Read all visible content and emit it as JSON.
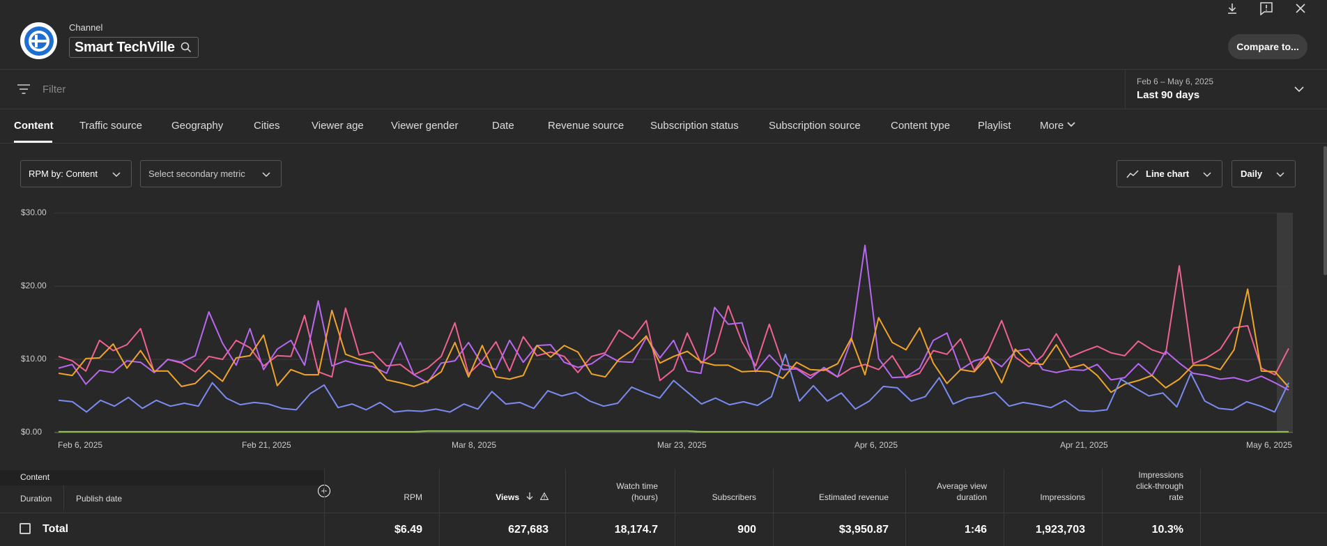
{
  "header": {
    "channel_label": "Channel",
    "channel_name": "Smart TechVille",
    "compare_label": "Compare to..."
  },
  "filter": {
    "placeholder": "Filter"
  },
  "date": {
    "range": "Feb 6 – May 6, 2025",
    "preset": "Last 90 days"
  },
  "tabs": [
    {
      "label": "Content",
      "active": true
    },
    {
      "label": "Traffic source"
    },
    {
      "label": "Geography"
    },
    {
      "label": "Cities"
    },
    {
      "label": "Viewer age"
    },
    {
      "label": "Viewer gender"
    },
    {
      "label": "Date"
    },
    {
      "label": "Revenue source"
    },
    {
      "label": "Subscription status"
    },
    {
      "label": "Subscription source"
    },
    {
      "label": "Content type"
    },
    {
      "label": "Playlist"
    },
    {
      "label": "More"
    }
  ],
  "controls": {
    "primary_metric": "RPM by: Content",
    "secondary_metric": "Select secondary metric",
    "chart_type": "Line chart",
    "granularity": "Daily"
  },
  "chart_data": {
    "type": "line",
    "y_ticks": [
      "$30.00",
      "$20.00",
      "$10.00",
      "$0.00"
    ],
    "ylim": [
      0,
      30
    ],
    "x_ticks": [
      "Feb 6, 2025",
      "Feb 21, 2025",
      "Mar 8, 2025",
      "Mar 23, 2025",
      "Apr 6, 2025",
      "Apr 21, 2025",
      "May 6, 2025"
    ],
    "xlim": [
      "2025-02-06",
      "2025-05-06"
    ],
    "grid": true,
    "series": [
      {
        "color": "#f06292",
        "values": [
          10.4,
          9.8,
          8.4,
          12.6,
          11.2,
          12,
          14.2,
          8.2,
          10,
          9.5,
          8.3,
          10.4,
          10,
          12.6,
          11.6,
          9.1,
          10.5,
          10.4,
          16,
          8.3,
          7.6,
          17,
          10.6,
          11,
          9.1,
          9.3,
          7.9,
          8.8,
          10.4,
          15,
          8,
          9.8,
          12.4,
          8.4,
          13.1,
          10.5,
          11,
          10.4,
          8.2,
          10.4,
          10.9,
          14,
          12.8,
          15.3,
          7.1,
          8.6,
          13.6,
          9.5,
          10.9,
          17.3,
          12.4,
          9.1,
          14.8,
          9.3,
          8.8,
          7.8,
          8.7,
          7.6,
          8.8,
          9.3,
          8.6,
          10.5,
          7.5,
          8.1,
          11.2,
          10.7,
          12.8,
          8.5,
          11.1,
          15.3,
          10.3,
          9,
          10.5,
          13.5,
          10.3,
          11.1,
          11.8,
          10.9,
          10.5,
          12.5,
          11.3,
          10.7,
          22.8,
          9.4,
          10.2,
          11.4,
          14.3,
          14.6,
          8.8,
          7.9,
          11.5
        ]
      },
      {
        "color": "#b868f2",
        "values": [
          8.8,
          9.3,
          6.6,
          8.5,
          8.2,
          9.8,
          9.6,
          8.2,
          10,
          9.6,
          10.5,
          16.5,
          12.2,
          9.2,
          14.2,
          8.6,
          11.4,
          12.6,
          9.2,
          18,
          9.1,
          9.8,
          9.3,
          9,
          8.1,
          12.3,
          7.9,
          6.8,
          9.5,
          9.8,
          12.3,
          9.3,
          8.6,
          12.6,
          9.6,
          11.9,
          12,
          9.6,
          8.9,
          9.4,
          10.7,
          9.7,
          9.6,
          13,
          10.2,
          12.6,
          8.4,
          8.1,
          17.1,
          14.8,
          15,
          8.3,
          10.6,
          8.6,
          8.7,
          7.4,
          8.9,
          7.6,
          12.6,
          25.6,
          10.1,
          7.5,
          7.6,
          8.8,
          12.6,
          13.6,
          8.6,
          9.8,
          10.3,
          9,
          11.1,
          11.4,
          8.6,
          8.2,
          8.6,
          8.5,
          9.3,
          7.2,
          7.5,
          9.4,
          7.8,
          11.1,
          9.5,
          8.1,
          7.8,
          7.3,
          7.5,
          7,
          7.7,
          6.8,
          5.8
        ]
      },
      {
        "color": "#f0a52a",
        "values": [
          8.1,
          7.8,
          10.1,
          10.2,
          12.1,
          8.8,
          11.2,
          8.4,
          8.4,
          6.3,
          6.7,
          8.5,
          7,
          10.2,
          10.5,
          13.3,
          6.4,
          8.6,
          7.9,
          7.9,
          16.7,
          10.7,
          10,
          9.5,
          7.2,
          6.8,
          6.3,
          7,
          8.3,
          12.3,
          7.6,
          11.9,
          7.6,
          7.3,
          7.8,
          11.9,
          10.3,
          11.9,
          11,
          8,
          7.6,
          10,
          11.3,
          13.2,
          9.5,
          10.4,
          11.1,
          9.7,
          9.2,
          9.2,
          8.3,
          8.4,
          8.3,
          7.4,
          9.6,
          8.6,
          8.5,
          9.4,
          12.9,
          7.9,
          15.7,
          12.3,
          11.3,
          14.3,
          9.5,
          6.7,
          8.6,
          8.3,
          10.4,
          6.8,
          11.4,
          9.5,
          9.3,
          12,
          8.8,
          9.3,
          7.8,
          5.5,
          6.6,
          7.1,
          7.8,
          6.1,
          7.3,
          9.2,
          9.2,
          8.6,
          11.3,
          19.6,
          8.4,
          8.3,
          6.2
        ]
      },
      {
        "color": "#7b8cf0",
        "values": [
          4.4,
          4.2,
          2.8,
          4.4,
          3.6,
          4.8,
          3.3,
          4.4,
          3.6,
          4,
          3.6,
          6.8,
          4.7,
          3.8,
          4.1,
          3.9,
          3.3,
          3.1,
          5.3,
          6.5,
          3.4,
          3.9,
          3.1,
          4.1,
          2.8,
          3,
          2.9,
          3.2,
          2.8,
          3.9,
          3.2,
          5.6,
          3.9,
          4.1,
          3.3,
          5.7,
          5,
          5.5,
          4.3,
          3.6,
          4,
          6.2,
          5.4,
          4.7,
          7.1,
          5.5,
          3.9,
          4.7,
          3.8,
          4.2,
          3.7,
          4.9,
          10.7,
          4.3,
          6.4,
          4.3,
          5.4,
          3.2,
          4.3,
          6.3,
          6.1,
          4.3,
          4.9,
          7.5,
          3.9,
          4.7,
          5,
          5.5,
          3.6,
          4.1,
          3.8,
          3.4,
          4.4,
          3,
          2.9,
          3.1,
          7.3,
          6.1,
          5,
          5.4,
          3.5,
          8.1,
          4.3,
          3.3,
          3.1,
          4.2,
          3.6,
          2.8,
          6.8
        ]
      },
      {
        "color": "#8bc34a",
        "values": [
          0.1,
          0.1,
          0.1,
          0.1,
          0.1,
          0.1,
          0.1,
          0.1,
          0.1,
          0.1,
          0.1,
          0.1,
          0.1,
          0.1,
          0.1,
          0.1,
          0.1,
          0.1,
          0.1,
          0.1,
          0.1,
          0.1,
          0.1,
          0.1,
          0.1,
          0.1,
          0.1,
          0.2,
          0.2,
          0.2,
          0.2,
          0.2,
          0.2,
          0.2,
          0.2,
          0.2,
          0.2,
          0.2,
          0.2,
          0.2,
          0.2,
          0.2,
          0.2,
          0.2,
          0.2,
          0.2,
          0.2,
          0.1,
          0.1,
          0.1,
          0.1,
          0.1,
          0.1,
          0.1,
          0.1,
          0.1,
          0.1,
          0.1,
          0.1,
          0.1,
          0.1,
          0.1,
          0.1,
          0.1,
          0.1,
          0.1,
          0.1,
          0.1,
          0.1,
          0.1,
          0.1,
          0.1,
          0.1,
          0.1,
          0.1,
          0.1,
          0.1,
          0.1,
          0.1,
          0.1,
          0.1,
          0.1,
          0.1,
          0.1,
          0.1,
          0.1,
          0.1,
          0.1,
          0.1,
          0.1,
          0.1
        ]
      }
    ]
  },
  "table": {
    "content_header": "Content",
    "duration_label": "Duration",
    "publish_label": "Publish date",
    "columns": [
      {
        "label": "RPM",
        "value": "$6.49"
      },
      {
        "label": "Views",
        "value": "627,683"
      },
      {
        "label": "Watch time\n(hours)",
        "value": "18,174.7"
      },
      {
        "label": "Subscribers",
        "value": "900"
      },
      {
        "label": "Estimated revenue",
        "value": "$3,950.87"
      },
      {
        "label": "Average view\nduration",
        "value": "1:46"
      },
      {
        "label": "Impressions",
        "value": "1,923,703"
      },
      {
        "label": "Impressions\nclick-through\nrate",
        "value": "10.3%"
      }
    ],
    "total_label": "Total"
  }
}
